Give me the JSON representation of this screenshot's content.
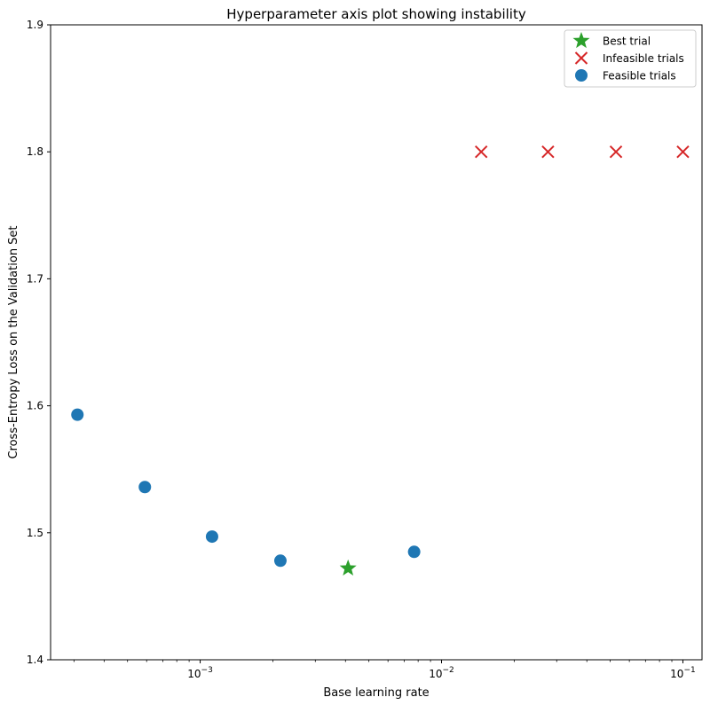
{
  "chart_data": {
    "type": "scatter",
    "title": "Hyperparameter axis plot showing instability",
    "xlabel": "Base learning rate",
    "ylabel": "Cross-Entropy Loss on the Validation Set",
    "xscale": "log",
    "xlim": [
      0.00024,
      0.12
    ],
    "ylim": [
      1.4,
      1.9
    ],
    "y_ticks": [
      "1.4",
      "1.5",
      "1.6",
      "1.7",
      "1.8",
      "1.9"
    ],
    "x_ticks": [
      {
        "value": 0.001,
        "base": "10",
        "exp": "−3"
      },
      {
        "value": 0.01,
        "base": "10",
        "exp": "−2"
      },
      {
        "value": 0.1,
        "base": "10",
        "exp": "−1"
      }
    ],
    "grid": false,
    "legend_position": "top-right",
    "series": [
      {
        "name": "Best trial",
        "marker": "star",
        "color": "#2ca02c",
        "points": [
          {
            "x": 0.0041,
            "y": 1.472
          }
        ]
      },
      {
        "name": "Infeasible trials",
        "marker": "x",
        "color": "#d62728",
        "points": [
          {
            "x": 0.0146,
            "y": 1.8
          },
          {
            "x": 0.0276,
            "y": 1.8
          },
          {
            "x": 0.0528,
            "y": 1.8
          },
          {
            "x": 0.1,
            "y": 1.8
          }
        ]
      },
      {
        "name": "Feasible trials",
        "marker": "circle",
        "color": "#1f77b4",
        "points": [
          {
            "x": 0.00031,
            "y": 1.593
          },
          {
            "x": 0.00059,
            "y": 1.536
          },
          {
            "x": 0.00112,
            "y": 1.497
          },
          {
            "x": 0.00215,
            "y": 1.478
          },
          {
            "x": 0.0077,
            "y": 1.485
          }
        ]
      }
    ]
  }
}
